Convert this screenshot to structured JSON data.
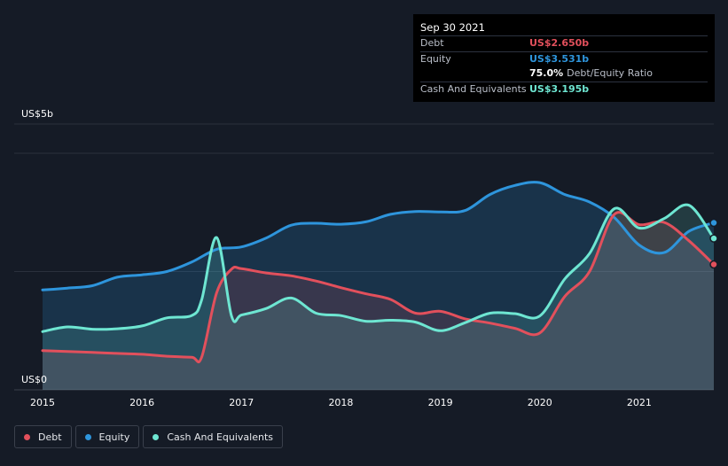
{
  "tooltip": {
    "date": "Sep 30 2021",
    "debt_label": "Debt",
    "debt_value": "US$2.650b",
    "equity_label": "Equity",
    "equity_value": "US$3.531b",
    "ratio_value": "75.0%",
    "ratio_label": "Debt/Equity Ratio",
    "cash_label": "Cash And Equivalents",
    "cash_value": "US$3.195b"
  },
  "legend": [
    {
      "label": "Debt",
      "color": "#e2505c"
    },
    {
      "label": "Equity",
      "color": "#2e95dc"
    },
    {
      "label": "Cash And Equivalents",
      "color": "#6ee6d2"
    }
  ],
  "chart_data": {
    "type": "area",
    "y_unit_labels": [
      "US$0",
      "US$5b"
    ],
    "x_tick_labels": [
      "2015",
      "2016",
      "2017",
      "2018",
      "2019",
      "2020",
      "2021"
    ],
    "ylim": [
      0,
      5
    ],
    "xlim": [
      2015.0,
      2021.75
    ],
    "grid": true,
    "legend_position": "bottom-left",
    "series": [
      {
        "name": "Debt",
        "color": "#e2505c",
        "x": [
          2015.0,
          2015.25,
          2015.5,
          2015.75,
          2016.0,
          2016.25,
          2016.5,
          2016.6,
          2016.75,
          2016.9,
          2017.0,
          2017.25,
          2017.5,
          2017.75,
          2018.0,
          2018.25,
          2018.5,
          2018.75,
          2019.0,
          2019.25,
          2019.5,
          2019.75,
          2020.0,
          2020.25,
          2020.5,
          2020.75,
          2021.0,
          2021.25,
          2021.5,
          2021.75
        ],
        "y": [
          0.83,
          0.81,
          0.79,
          0.77,
          0.75,
          0.71,
          0.69,
          0.69,
          2.05,
          2.55,
          2.56,
          2.47,
          2.41,
          2.3,
          2.16,
          2.03,
          1.91,
          1.62,
          1.66,
          1.5,
          1.41,
          1.3,
          1.2,
          1.97,
          2.5,
          3.71,
          3.49,
          3.54,
          3.15,
          2.65
        ]
      },
      {
        "name": "Equity",
        "color": "#2e95dc",
        "x": [
          2015.0,
          2015.25,
          2015.5,
          2015.75,
          2016.0,
          2016.25,
          2016.5,
          2016.75,
          2017.0,
          2017.25,
          2017.5,
          2017.75,
          2018.0,
          2018.25,
          2018.5,
          2018.75,
          2019.0,
          2019.25,
          2019.5,
          2019.75,
          2020.0,
          2020.25,
          2020.5,
          2020.75,
          2021.0,
          2021.25,
          2021.5,
          2021.75
        ],
        "y": [
          2.11,
          2.15,
          2.2,
          2.38,
          2.43,
          2.5,
          2.7,
          2.97,
          3.02,
          3.21,
          3.48,
          3.52,
          3.5,
          3.55,
          3.71,
          3.77,
          3.76,
          3.79,
          4.13,
          4.32,
          4.38,
          4.13,
          3.97,
          3.64,
          3.06,
          2.9,
          3.35,
          3.53
        ]
      },
      {
        "name": "Cash And Equivalents",
        "color": "#6ee6d2",
        "x": [
          2015.0,
          2015.25,
          2015.5,
          2015.75,
          2016.0,
          2016.25,
          2016.5,
          2016.6,
          2016.75,
          2016.9,
          2017.0,
          2017.25,
          2017.5,
          2017.75,
          2018.0,
          2018.25,
          2018.5,
          2018.75,
          2019.0,
          2019.25,
          2019.5,
          2019.75,
          2020.0,
          2020.25,
          2020.5,
          2020.75,
          2021.0,
          2021.25,
          2021.5,
          2021.75
        ],
        "y": [
          1.23,
          1.33,
          1.28,
          1.29,
          1.35,
          1.52,
          1.57,
          1.9,
          3.22,
          1.56,
          1.58,
          1.72,
          1.94,
          1.62,
          1.57,
          1.45,
          1.47,
          1.43,
          1.25,
          1.42,
          1.62,
          1.61,
          1.56,
          2.34,
          2.88,
          3.83,
          3.42,
          3.62,
          3.9,
          3.2
        ]
      }
    ]
  }
}
